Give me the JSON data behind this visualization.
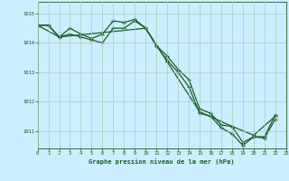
{
  "title": "Graphe pression niveau de la mer (hPa)",
  "bg_color": "#cceeff",
  "grid_color": "#aaccbb",
  "line_color": "#1a5c28",
  "xlim": [
    0,
    23
  ],
  "ylim": [
    1010.4,
    1015.4
  ],
  "yticks": [
    1011,
    1012,
    1013,
    1014,
    1015
  ],
  "xticks": [
    0,
    1,
    2,
    3,
    4,
    5,
    6,
    7,
    8,
    9,
    10,
    11,
    12,
    13,
    14,
    15,
    16,
    17,
    18,
    19,
    20,
    21,
    22,
    23
  ],
  "series1": [
    1014.6,
    1014.6,
    1014.2,
    1014.5,
    1014.3,
    1014.15,
    1014.3,
    1014.75,
    1014.7,
    1014.8,
    1014.5,
    1013.9,
    1013.55,
    1013.1,
    1012.75,
    1011.75,
    1011.6,
    1011.2,
    1011.15,
    1010.6,
    1010.8,
    1010.8,
    1011.55,
    null
  ],
  "series2": [
    1014.6,
    1014.6,
    1014.2,
    1014.3,
    1014.2,
    1014.1,
    1014.0,
    1014.5,
    1014.5,
    1014.75,
    1014.5,
    1013.9,
    1013.4,
    1013.0,
    1012.5,
    1011.6,
    1011.5,
    1011.1,
    1010.9,
    1010.5,
    1010.8,
    1010.75,
    1011.4,
    null
  ],
  "series3_x": [
    0,
    2,
    10,
    12,
    15,
    18,
    20,
    22
  ],
  "series3_y": [
    1014.6,
    1014.2,
    1014.5,
    1013.35,
    1011.65,
    1011.15,
    1010.85,
    1011.5
  ]
}
